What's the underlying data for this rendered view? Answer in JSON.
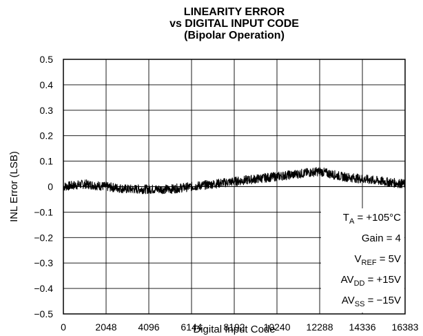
{
  "chart_data": {
    "type": "line",
    "title": [
      "LINEARITY ERROR",
      "vs DIGITAL INPUT CODE",
      "(Bipolar Operation)"
    ],
    "xlabel": "Digital Input Code",
    "ylabel": "INL Error (LSB)",
    "xlim": [
      0,
      16383
    ],
    "ylim": [
      -0.5,
      0.5
    ],
    "x_ticks": [
      0,
      2048,
      4096,
      6144,
      8192,
      10240,
      12288,
      14336,
      16383
    ],
    "x_tick_labels": [
      "0",
      "2048",
      "4096",
      "6144",
      "8192",
      "10240",
      "12288",
      "14336",
      "16383"
    ],
    "y_ticks": [
      0.5,
      0.4,
      0.3,
      0.2,
      0.1,
      0,
      -0.1,
      -0.2,
      -0.3,
      -0.4,
      -0.5
    ],
    "y_tick_labels": [
      "0.5",
      "0.4",
      "0.3",
      "0.2",
      "0.1",
      "0",
      "−0.1",
      "−0.2",
      "−0.3",
      "−0.4",
      "−0.5"
    ],
    "grid": true,
    "series": [
      {
        "color": "#000000",
        "band_halfwidth": 0.018,
        "x": [
          0,
          1024,
          2048,
          3072,
          4096,
          5120,
          6144,
          7168,
          8192,
          9216,
          10240,
          11264,
          12288,
          13312,
          14336,
          15360,
          16383
        ],
        "y": [
          0.0,
          0.01,
          0.0,
          -0.01,
          -0.01,
          -0.01,
          0.0,
          0.01,
          0.02,
          0.03,
          0.04,
          0.05,
          0.06,
          0.04,
          0.03,
          0.02,
          0.01
        ]
      }
    ],
    "annotations": [
      {
        "main": "T",
        "sub": "A",
        "rest": " = +105°C"
      },
      {
        "main": "Gain = 4",
        "sub": "",
        "rest": ""
      },
      {
        "main": "V",
        "sub": "REF",
        "rest": " = 5V"
      },
      {
        "main": "AV",
        "sub": "DD",
        "rest": " = +15V"
      },
      {
        "main": "AV",
        "sub": "SS",
        "rest": " = −15V"
      }
    ]
  }
}
